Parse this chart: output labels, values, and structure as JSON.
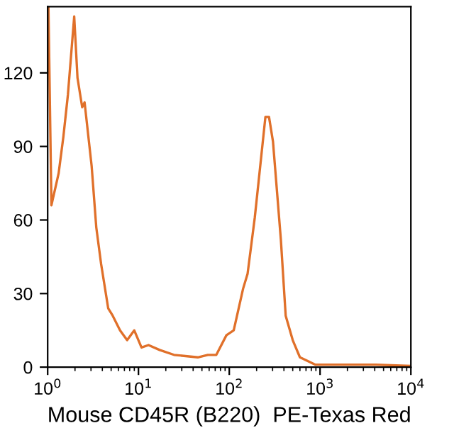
{
  "chart_data": {
    "type": "line",
    "xlabel": "Mouse CD45R (B220)  PE-Texas Red",
    "log": "x",
    "grid": false,
    "legend": false,
    "marker": "none",
    "line_style": "solid",
    "xlim": [
      1,
      10000
    ],
    "xticks": [
      {
        "value": 1,
        "label": "10$^{0}$"
      },
      {
        "value": 10,
        "label": "10$^{1}$"
      },
      {
        "value": 100,
        "label": "10$^{2}$"
      },
      {
        "value": 1000,
        "label": "10$^{3}$"
      },
      {
        "value": 10000,
        "label": "10$^{4}$"
      }
    ],
    "ylim": [
      0,
      147
    ],
    "yticks": [
      0,
      30,
      60,
      90,
      120
    ],
    "series": [
      {
        "color": "#e0702a",
        "x": [
          1.02,
          1.1,
          1.32,
          1.49,
          1.67,
          1.96,
          2.13,
          2.4,
          2.55,
          3.05,
          3.43,
          3.88,
          4.64,
          5.2,
          6.27,
          7.5,
          8.98,
          10.8,
          12.9,
          17.1,
          24.6,
          45,
          58,
          72,
          93,
          112,
          142,
          159,
          191,
          215,
          250,
          274,
          303,
          370,
          418,
          500,
          600,
          890,
          2100,
          4100,
          10000
        ],
        "values": [
          147,
          66,
          79,
          94,
          111,
          143,
          118,
          106,
          108,
          82,
          57,
          42,
          24,
          21,
          15,
          11,
          15,
          8,
          9,
          7,
          5,
          4,
          5,
          5,
          13,
          15,
          32,
          38,
          61,
          79,
          102,
          102,
          92,
          52,
          21,
          11,
          4,
          1,
          1,
          1,
          0.5
        ]
      }
    ]
  }
}
